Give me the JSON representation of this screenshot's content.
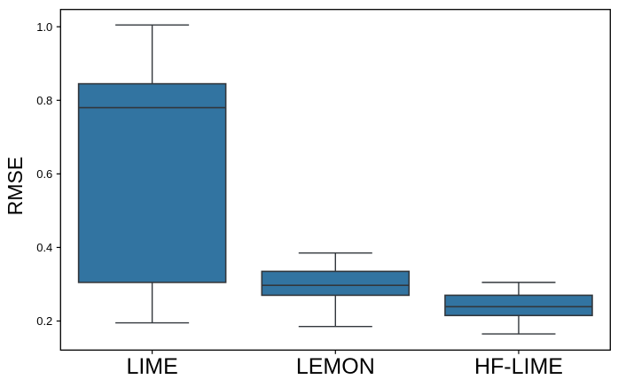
{
  "chart_data": {
    "type": "box",
    "title": "",
    "xlabel": "",
    "ylabel": "RMSE",
    "categories": [
      "LIME",
      "LEMON",
      "HF-LIME"
    ],
    "yticks": [
      0.2,
      0.4,
      0.6,
      0.8,
      1.0
    ],
    "ytick_labels": [
      "0.2",
      "0.4",
      "0.6",
      "0.8",
      "1.0"
    ],
    "ylim": [
      0.121,
      1.047
    ],
    "grid": false,
    "frame": true,
    "legend": null,
    "series": [
      {
        "name": "LIME",
        "whisker_low": 0.195,
        "q1": 0.305,
        "median": 0.78,
        "q3": 0.845,
        "whisker_high": 1.005
      },
      {
        "name": "LEMON",
        "whisker_low": 0.185,
        "q1": 0.27,
        "median": 0.297,
        "q3": 0.335,
        "whisker_high": 0.385
      },
      {
        "name": "HF-LIME",
        "whisker_low": 0.165,
        "q1": 0.215,
        "median": 0.239,
        "q3": 0.27,
        "whisker_high": 0.305
      }
    ],
    "colors": {
      "box_fill": "#3274a1",
      "box_edge": "#32373c",
      "whisker": "#32373c",
      "median": "#32373c",
      "cap": "#32373c",
      "axis": "#000000",
      "text": "#000000",
      "background": "#ffffff"
    }
  }
}
